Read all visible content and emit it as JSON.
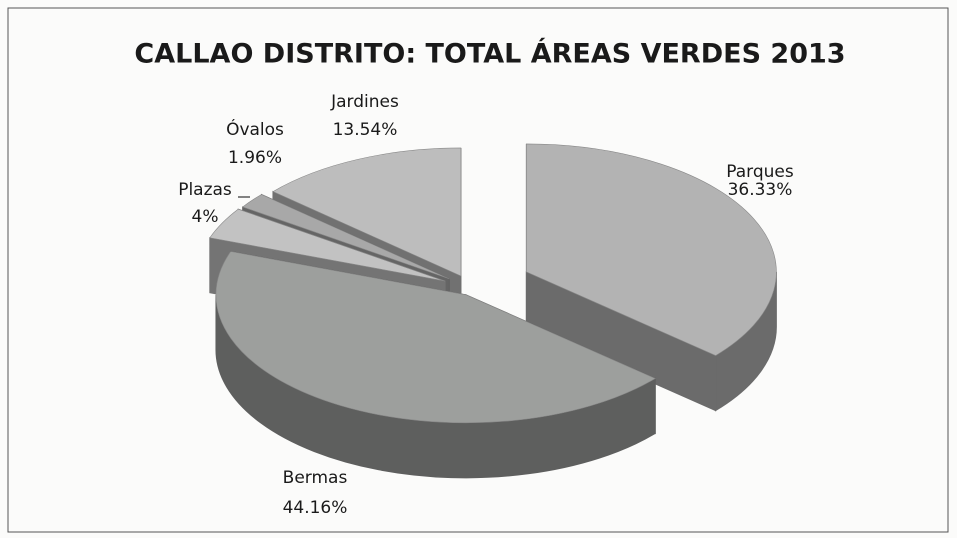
{
  "chart_data": {
    "type": "pie",
    "title": "CALLAO DISTRITO: TOTAL ÁREAS VERDES 2013",
    "categories": [
      "Parques",
      "Bermas",
      "Plazas",
      "Óvalos",
      "Jardines"
    ],
    "values": [
      36.33,
      44.16,
      4,
      1.96,
      13.54
    ],
    "value_labels": [
      "36.33%",
      "44.16%",
      "4%",
      "1.96%",
      "13.54%"
    ],
    "colors": [
      "#b3b3b3",
      "#9d9f9d",
      "#c2c2c2",
      "#a8a8a8",
      "#bdbdbd"
    ]
  }
}
